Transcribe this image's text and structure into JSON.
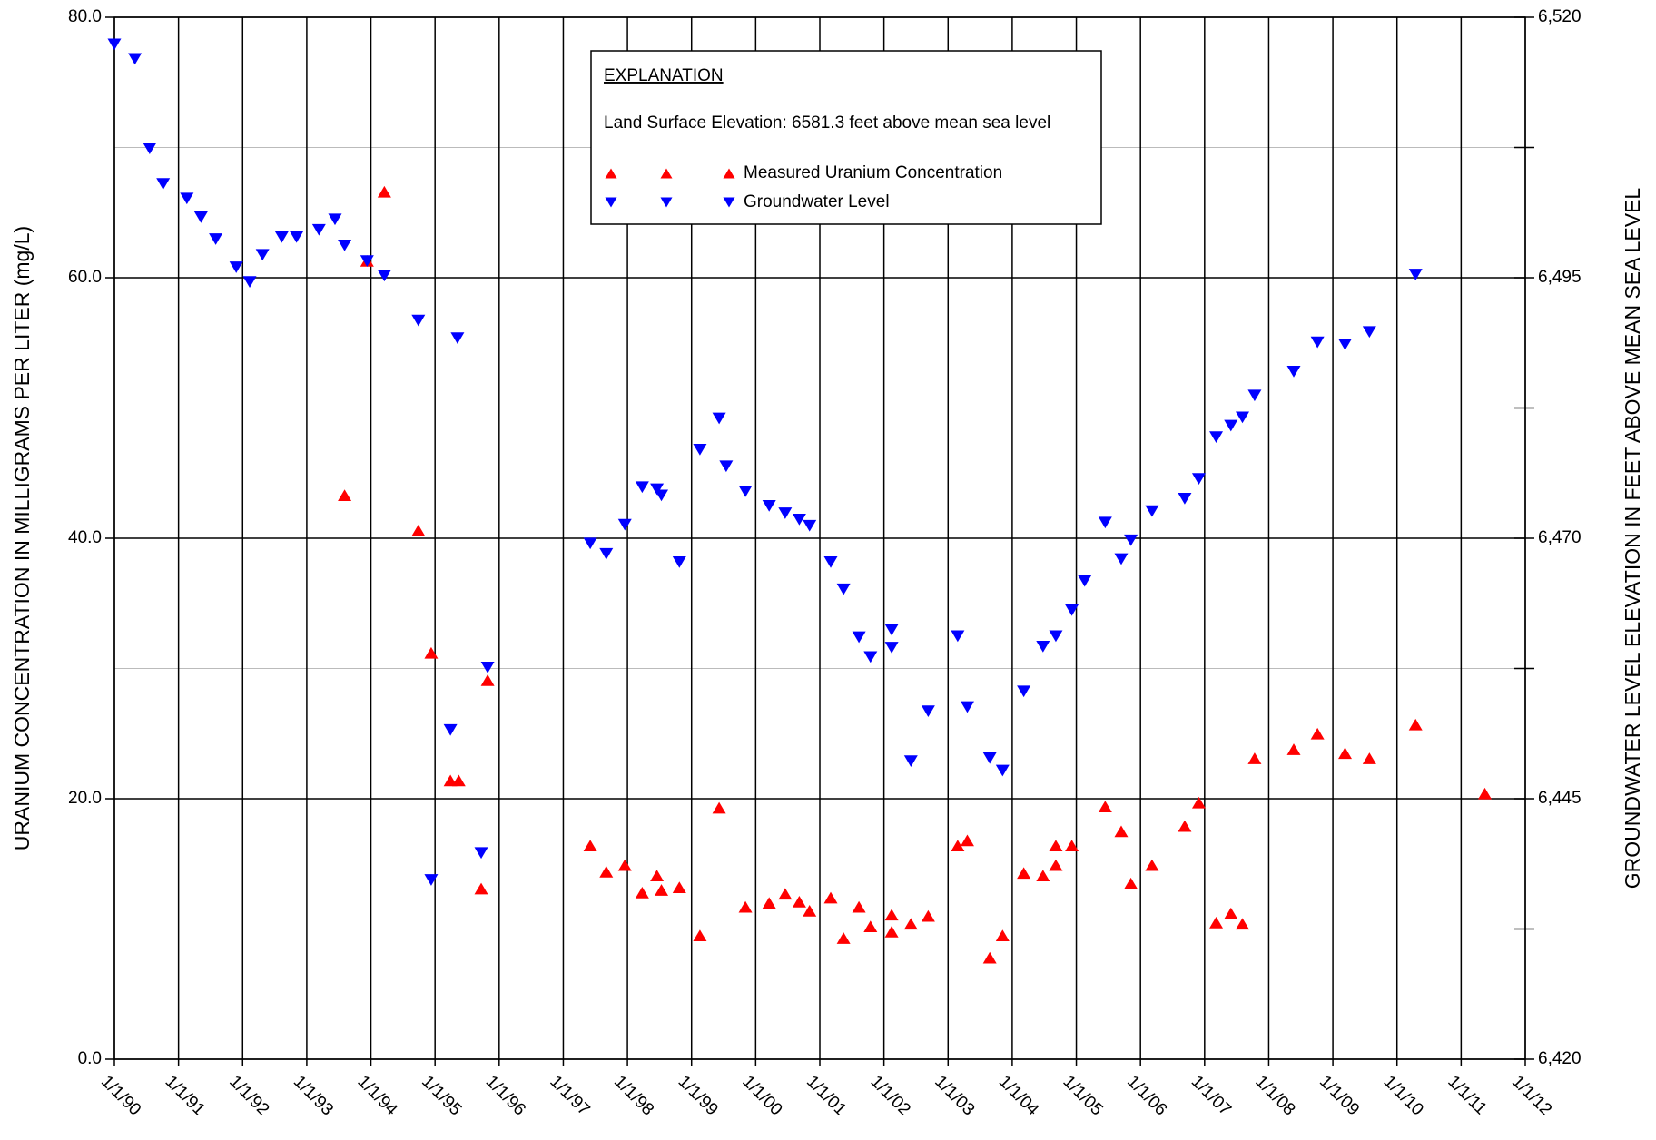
{
  "chart_data": {
    "type": "scatter",
    "ylabel": "URANIUM CONCENTRATION IN MILLIGRAMS PER LITER (mg/L)",
    "y2label": "GROUNDWATER LEVEL ELEVATION IN FEET ABOVE MEAN SEA LEVEL",
    "legend_title": "EXPLANATION",
    "annotation": "Land Surface Elevation:  6581.3 feet above mean sea level",
    "xlim": [
      1990,
      2012
    ],
    "xticks": [
      {
        "value": 1990,
        "label": "1/1/90"
      },
      {
        "value": 1991,
        "label": "1/1/91"
      },
      {
        "value": 1992,
        "label": "1/1/92"
      },
      {
        "value": 1993,
        "label": "1/1/93"
      },
      {
        "value": 1994,
        "label": "1/1/94"
      },
      {
        "value": 1995,
        "label": "1/1/95"
      },
      {
        "value": 1996,
        "label": "1/1/96"
      },
      {
        "value": 1997,
        "label": "1/1/97"
      },
      {
        "value": 1998,
        "label": "1/1/98"
      },
      {
        "value": 1999,
        "label": "1/1/99"
      },
      {
        "value": 2000,
        "label": "1/1/00"
      },
      {
        "value": 2001,
        "label": "1/1/01"
      },
      {
        "value": 2002,
        "label": "1/1/02"
      },
      {
        "value": 2003,
        "label": "1/1/03"
      },
      {
        "value": 2004,
        "label": "1/1/04"
      },
      {
        "value": 2005,
        "label": "1/1/05"
      },
      {
        "value": 2006,
        "label": "1/1/06"
      },
      {
        "value": 2007,
        "label": "1/1/07"
      },
      {
        "value": 2008,
        "label": "1/1/08"
      },
      {
        "value": 2009,
        "label": "1/1/09"
      },
      {
        "value": 2010,
        "label": "1/1/10"
      },
      {
        "value": 2011,
        "label": "1/1/11"
      },
      {
        "value": 2012,
        "label": "1/1/12"
      }
    ],
    "ylim": [
      0,
      80
    ],
    "yticks": [
      {
        "value": 0,
        "label": "0.0"
      },
      {
        "value": 20,
        "label": "20.0"
      },
      {
        "value": 40,
        "label": "40.0"
      },
      {
        "value": 60,
        "label": "60.0"
      },
      {
        "value": 80,
        "label": "80.0"
      }
    ],
    "yticks_minor": [
      10,
      30,
      50,
      70
    ],
    "y2lim": [
      6420,
      6520
    ],
    "y2ticks": [
      {
        "value": 6420,
        "label": "6,420"
      },
      {
        "value": 6445,
        "label": "6,445"
      },
      {
        "value": 6470,
        "label": "6,470"
      },
      {
        "value": 6495,
        "label": "6,495"
      },
      {
        "value": 6520,
        "label": "6,520"
      }
    ],
    "y2ticks_minor": [
      6432.5,
      6457.5,
      6482.5,
      6507.5
    ],
    "grid": true,
    "series": [
      {
        "name": "Measured Uranium Concentration",
        "color": "#ff0000",
        "marker": "triangle-up",
        "x": [
          1993.59,
          1993.94,
          1994.21,
          1994.74,
          1994.94,
          1995.24,
          1995.37,
          1995.72,
          1995.82,
          1997.42,
          1997.67,
          1997.96,
          1998.23,
          1998.46,
          1998.53,
          1998.81,
          1999.13,
          1999.43,
          1999.84,
          2000.21,
          2000.46,
          2000.68,
          2000.84,
          2001.17,
          2001.37,
          2001.61,
          2001.79,
          2002.12,
          2002.12,
          2002.42,
          2002.69,
          2003.15,
          2003.3,
          2003.65,
          2003.85,
          2004.18,
          2004.48,
          2004.68,
          2004.68,
          2004.93,
          2005.45,
          2005.7,
          2005.85,
          2006.18,
          2006.69,
          2006.91,
          2007.18,
          2007.41,
          2007.59,
          2007.78,
          2008.39,
          2008.76,
          2009.19,
          2009.57,
          2010.29,
          2011.37
        ],
        "values": [
          43.3,
          61.3,
          66.6,
          40.6,
          31.2,
          21.4,
          21.4,
          13.1,
          29.1,
          16.4,
          14.4,
          14.9,
          12.8,
          14.1,
          13.0,
          13.2,
          9.5,
          19.3,
          11.7,
          12.0,
          12.7,
          12.1,
          11.4,
          12.4,
          9.3,
          11.7,
          10.2,
          11.1,
          9.8,
          10.4,
          11.0,
          16.4,
          16.8,
          7.8,
          9.5,
          14.3,
          14.1,
          16.4,
          14.9,
          16.4,
          19.4,
          17.5,
          13.5,
          14.9,
          17.9,
          19.7,
          10.5,
          11.2,
          10.4,
          23.1,
          23.8,
          25.0,
          23.5,
          23.1,
          25.7,
          20.4
        ]
      },
      {
        "name": "Groundwater Level",
        "color": "#0000ff",
        "marker": "triangle-down",
        "axis": "y2",
        "x": [
          1990.0,
          1990.32,
          1990.55,
          1990.76,
          1991.13,
          1991.35,
          1991.58,
          1991.9,
          1992.11,
          1992.31,
          1992.61,
          1992.84,
          1993.19,
          1993.44,
          1993.59,
          1993.94,
          1994.21,
          1994.74,
          1995.35,
          1994.94,
          1995.24,
          1995.72,
          1995.82,
          1997.42,
          1997.67,
          1997.96,
          1998.23,
          1998.46,
          1998.53,
          1998.81,
          1999.13,
          1999.43,
          1999.54,
          1999.84,
          2000.21,
          2000.46,
          2000.68,
          2000.84,
          2001.17,
          2001.37,
          2001.61,
          2001.79,
          2002.12,
          2002.12,
          2002.42,
          2002.69,
          2003.15,
          2003.3,
          2003.65,
          2003.85,
          2004.18,
          2004.48,
          2004.68,
          2004.93,
          2005.13,
          2005.45,
          2005.7,
          2005.85,
          2006.18,
          2006.69,
          2006.91,
          2007.18,
          2007.41,
          2007.59,
          2007.78,
          2008.39,
          2008.76,
          2009.19,
          2009.57,
          2010.29
        ],
        "values": [
          6517.4,
          6516.0,
          6507.4,
          6504.0,
          6502.6,
          6500.8,
          6498.7,
          6496.0,
          6494.6,
          6497.2,
          6498.9,
          6498.9,
          6499.6,
          6500.6,
          6498.1,
          6496.6,
          6495.2,
          6490.9,
          6489.2,
          6437.2,
          6451.6,
          6439.8,
          6457.6,
          6469.5,
          6468.5,
          6471.3,
          6474.9,
          6474.7,
          6474.1,
          6467.7,
          6478.5,
          6481.5,
          6476.9,
          6474.5,
          6473.1,
          6472.4,
          6471.8,
          6471.2,
          6467.7,
          6465.1,
          6460.5,
          6458.6,
          6461.2,
          6459.5,
          6448.6,
          6453.4,
          6460.6,
          6453.8,
          6448.9,
          6447.7,
          6455.3,
          6459.6,
          6460.6,
          6463.1,
          6465.9,
          6471.5,
          6468.0,
          6469.8,
          6472.6,
          6473.8,
          6475.7,
          6479.7,
          6480.8,
          6481.6,
          6483.7,
          6486.0,
          6488.8,
          6488.6,
          6489.8,
          6495.3
        ]
      }
    ]
  }
}
